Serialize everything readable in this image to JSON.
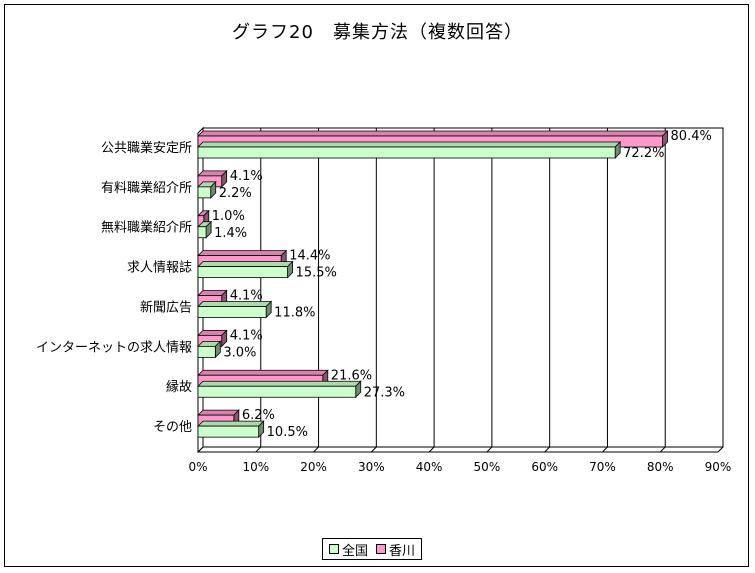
{
  "chart_data": {
    "type": "bar",
    "orientation": "horizontal",
    "title": "グラフ20　募集方法（複数回答）",
    "categories": [
      "公共職業安定所",
      "有料職業紹介所",
      "無料職業紹介所",
      "求人情報誌",
      "新聞広告",
      "インターネットの求人情報",
      "縁故",
      "その他"
    ],
    "series": [
      {
        "name": "香川",
        "color": "#ff99cc",
        "values": [
          80.4,
          4.1,
          1.0,
          14.4,
          4.1,
          4.1,
          21.6,
          6.2
        ],
        "labels": [
          "80.4%",
          "4.1%",
          "1.0%",
          "14.4%",
          "4.1%",
          "4.1%",
          "21.6%",
          "6.2%"
        ]
      },
      {
        "name": "全国",
        "color": "#ccffcc",
        "values": [
          72.2,
          2.2,
          1.4,
          15.5,
          11.8,
          3.0,
          27.3,
          10.5
        ],
        "labels": [
          "72.2%",
          "2.2%",
          "1.4%",
          "15.5%",
          "11.8%",
          "3.0%",
          "27.3%",
          "10.5%"
        ]
      }
    ],
    "xlim": [
      0,
      90
    ],
    "xticks": [
      "0%",
      "10%",
      "20%",
      "30%",
      "40%",
      "50%",
      "60%",
      "70%",
      "80%",
      "90%"
    ],
    "grid": true,
    "legend_position": "bottom",
    "legend": [
      "全国",
      "香川"
    ]
  }
}
